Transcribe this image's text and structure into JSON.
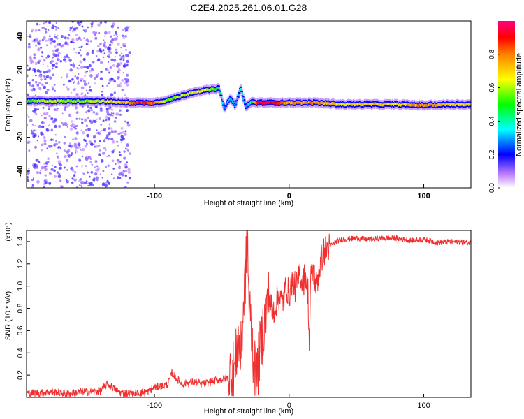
{
  "title": "C2E4.2025.261.06.01.G28",
  "chart_data": [
    {
      "type": "heatmap",
      "xlabel": "Height of straight line (km)",
      "ylabel": "Frequency (Hz)",
      "xlim": [
        -195,
        135
      ],
      "ylim": [
        -50,
        49
      ],
      "xticks": [
        -100,
        0,
        100
      ],
      "xtick_labels": [
        "-100",
        "0",
        "100"
      ],
      "yticks": [
        -40,
        -20,
        0,
        20,
        40
      ],
      "ytick_labels": [
        "-40",
        "-20",
        "0",
        "20",
        "40"
      ],
      "grid": false,
      "colorbar": {
        "label": "Normalized spectral amplitude",
        "range": [
          0,
          1
        ],
        "ticks": [
          0.0,
          0.2,
          0.4,
          0.6,
          0.8
        ],
        "tick_labels": [
          "0.0",
          "0.2",
          "0.4",
          "0.6",
          "0.8"
        ],
        "colormap": "rainbow"
      },
      "ridge": {
        "x": [
          -195,
          -180,
          -160,
          -140,
          -120,
          -110,
          -100,
          -90,
          -80,
          -70,
          -60,
          -52,
          -48,
          -44,
          -40,
          -36,
          -32,
          -28,
          -24,
          -20,
          -10,
          0,
          10,
          20,
          40,
          60,
          80,
          100,
          120,
          135
        ],
        "frequency": [
          1.5,
          1.5,
          1.5,
          1.5,
          0.5,
          0.5,
          0.5,
          2,
          4.5,
          7,
          8,
          9,
          -3,
          3,
          -1,
          9,
          -2,
          1,
          0.5,
          0.5,
          0.5,
          0.5,
          0.5,
          0.5,
          -0.5,
          -0.5,
          -0.5,
          -1,
          -0.5,
          -0.5
        ],
        "amplitude": [
          0.55,
          0.65,
          0.6,
          0.65,
          0.8,
          0.95,
          0.85,
          0.6,
          0.65,
          0.7,
          0.65,
          0.5,
          0.3,
          0.35,
          0.3,
          0.4,
          0.3,
          0.45,
          0.95,
          1.0,
          0.95,
          0.8,
          0.8,
          0.85,
          0.7,
          0.75,
          0.72,
          0.85,
          0.75,
          0.7
        ]
      }
    },
    {
      "type": "line",
      "xlabel": "Height of straight line (km)",
      "ylabel": "SNR (10 * v/v)",
      "y_multiplier": "(x10⁴)",
      "xlim": [
        -195,
        135
      ],
      "ylim": [
        0,
        1.5
      ],
      "xticks": [
        -100,
        0,
        100
      ],
      "xtick_labels": [
        "-100",
        "0",
        "100"
      ],
      "yticks": [
        0.2,
        0.4,
        0.6,
        0.8,
        1.0,
        1.2,
        1.4
      ],
      "ytick_labels": [
        "0.2",
        "0.4",
        "0.6",
        "0.8",
        "1.0",
        "1.2",
        "1.4"
      ],
      "grid": false,
      "color": "#f03030",
      "series": [
        {
          "x": [
            -195,
            -185,
            -175,
            -165,
            -155,
            -145,
            -140,
            -135,
            -125,
            -115,
            -105,
            -100,
            -95,
            -90,
            -87,
            -80,
            -75,
            -70,
            -65,
            -60,
            -55,
            -50,
            -45,
            -40,
            -38,
            -36,
            -34,
            -32,
            -31,
            -30,
            -28,
            -26,
            -24,
            -22,
            -20,
            -18,
            -15,
            -12,
            -8,
            -5,
            -2,
            0,
            2,
            5,
            8,
            10,
            12,
            14,
            15,
            16,
            18,
            20,
            25,
            30,
            35,
            40,
            50,
            60,
            70,
            80,
            90,
            100,
            110,
            120,
            135
          ],
          "y": [
            0.04,
            0.04,
            0.05,
            0.03,
            0.05,
            0.05,
            0.06,
            0.12,
            0.04,
            0.03,
            0.05,
            0.09,
            0.1,
            0.12,
            0.22,
            0.12,
            0.13,
            0.14,
            0.12,
            0.13,
            0.15,
            0.16,
            0.18,
            0.28,
            0.55,
            0.35,
            0.8,
            1.2,
            1.5,
            0.9,
            0.6,
            0.25,
            0.18,
            0.4,
            0.55,
            0.7,
            0.9,
            0.75,
            0.92,
            0.85,
            1.0,
            0.92,
            1.05,
            0.98,
            1.12,
            1.02,
            1.1,
            0.95,
            0.45,
            1.05,
            1.15,
            1.0,
            1.3,
            1.36,
            1.4,
            1.42,
            1.43,
            1.42,
            1.43,
            1.43,
            1.41,
            1.42,
            1.39,
            1.4,
            1.39
          ]
        }
      ]
    }
  ]
}
